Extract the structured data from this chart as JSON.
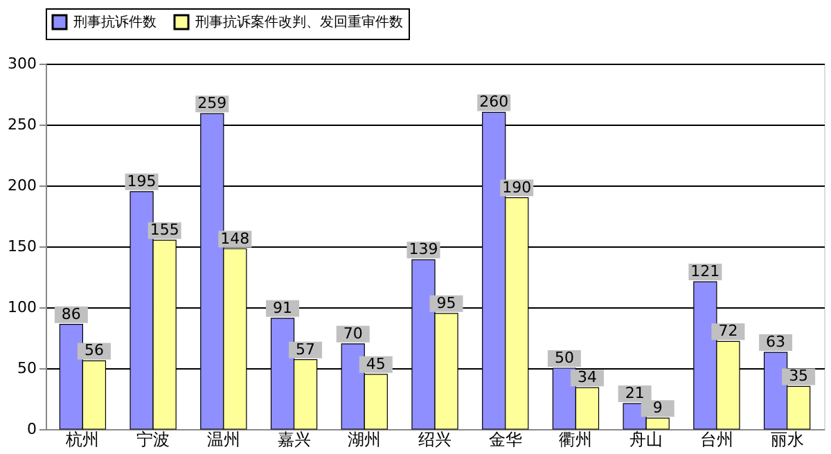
{
  "chart_data": {
    "type": "bar",
    "categories": [
      "杭州",
      "宁波",
      "温州",
      "嘉兴",
      "湖州",
      "绍兴",
      "金华",
      "衢州",
      "舟山",
      "台州",
      "丽水"
    ],
    "series": [
      {
        "name": "刑事抗诉件数",
        "color": "#8f8fff",
        "values": [
          86,
          195,
          259,
          91,
          70,
          139,
          260,
          50,
          21,
          121,
          63
        ]
      },
      {
        "name": "刑事抗诉案件改判、发回重审件数",
        "color": "#ffff99",
        "values": [
          56,
          155,
          148,
          57,
          45,
          95,
          190,
          34,
          9,
          72,
          35
        ]
      }
    ],
    "ylim": [
      0,
      300
    ],
    "yticks": [
      0,
      50,
      100,
      150,
      200,
      250,
      300
    ],
    "grid": "y",
    "legend": "top",
    "data_labels": true
  }
}
